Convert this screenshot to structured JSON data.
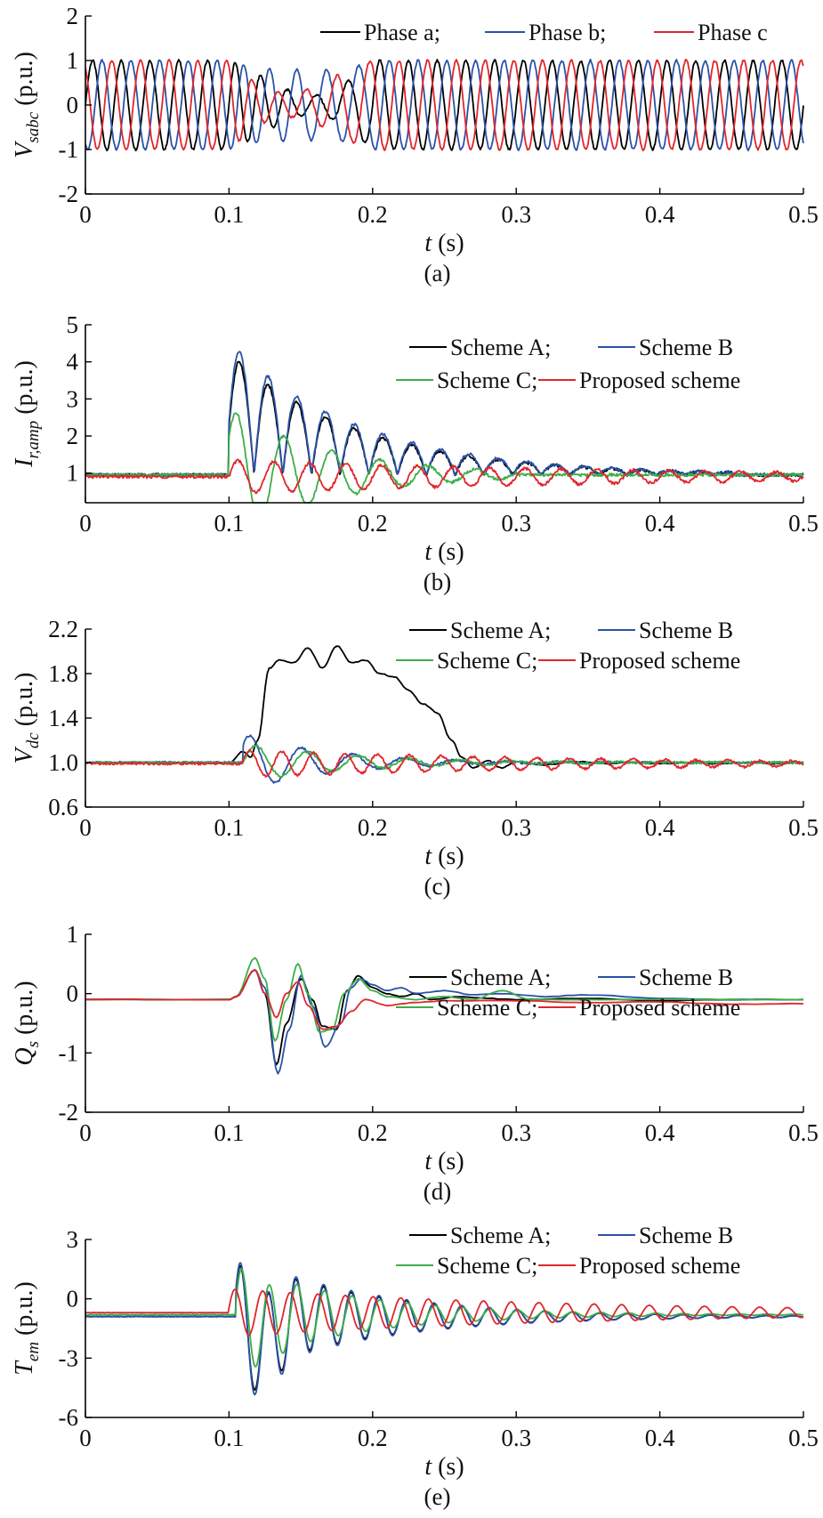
{
  "colors": {
    "black": "#000000",
    "blue": "#2a52a8",
    "red": "#e0262c",
    "green": "#3cae48"
  },
  "chart_data": [
    {
      "id": "a",
      "type": "line",
      "caption": "(a)",
      "xlabel": {
        "main": "t",
        "unit": " (s)"
      },
      "ylabel": {
        "main": "V",
        "sub": "sabc",
        "unit": " (p.u.)"
      },
      "xlim": [
        0,
        0.5
      ],
      "ylim": [
        -2,
        2
      ],
      "xticks": [
        0,
        0.1,
        0.2,
        0.3,
        0.4,
        0.5
      ],
      "xticklabels": [
        "0",
        "0.1",
        "0.2",
        "0.3",
        "0.4",
        "0.5"
      ],
      "yticks": [
        -2,
        -1,
        0,
        1,
        2
      ],
      "yticklabels": [
        "-2",
        "-1",
        "0",
        "1",
        "2"
      ],
      "legend_rows": [
        [
          {
            "label": "Phase a;",
            "color": "black"
          },
          {
            "label": "Phase b;",
            "color": "blue"
          },
          {
            "label": "Phase c",
            "color": "red"
          }
        ]
      ],
      "series": [
        {
          "name": "Phase a",
          "color": "black",
          "kind": "voltage",
          "phase": 0
        },
        {
          "name": "Phase b",
          "color": "blue",
          "kind": "voltage",
          "phase": -120
        },
        {
          "name": "Phase c",
          "color": "red",
          "kind": "voltage",
          "phase": 120
        }
      ]
    },
    {
      "id": "b",
      "type": "line",
      "caption": "(b)",
      "xlabel": {
        "main": "t",
        "unit": " (s)"
      },
      "ylabel": {
        "main": "I",
        "sub": "r,amp",
        "unit": " (p.u.)"
      },
      "xlim": [
        0,
        0.5
      ],
      "ylim": [
        0.2,
        5
      ],
      "xticks": [
        0,
        0.1,
        0.2,
        0.3,
        0.4,
        0.5
      ],
      "xticklabels": [
        "0",
        "0.1",
        "0.2",
        "0.3",
        "0.4",
        "0.5"
      ],
      "yticks": [
        1,
        2,
        3,
        4,
        5
      ],
      "yticklabels": [
        "1",
        "2",
        "3",
        "4",
        "5"
      ],
      "legend_rows": [
        [
          {
            "label": "Scheme A;",
            "color": "black"
          },
          {
            "label": "Scheme B",
            "color": "blue"
          }
        ],
        [
          {
            "label": "Scheme C;",
            "color": "green"
          },
          {
            "label": "Proposed scheme",
            "color": "red"
          }
        ]
      ],
      "series": [
        {
          "name": "Scheme A",
          "color": "black",
          "kind": "osc",
          "base": 0.95,
          "amp": 3.3,
          "freq": 25,
          "tau": 0.09,
          "t0": 0.1,
          "stop": 0.45,
          "offset": 0.4
        },
        {
          "name": "Scheme B",
          "color": "blue",
          "kind": "osc",
          "base": 0.95,
          "amp": 3.6,
          "freq": 25,
          "tau": 0.09,
          "t0": 0.1,
          "stop": 0.45,
          "offset": 0.4
        },
        {
          "name": "Scheme C",
          "color": "green",
          "kind": "osc",
          "base": 0.95,
          "amp": 1.8,
          "freq": 30,
          "tau": 0.07,
          "t0": 0.1,
          "stop": 0.3,
          "offset": 0.6
        },
        {
          "name": "Proposed scheme",
          "color": "red",
          "kind": "osc",
          "base": 0.9,
          "amp": 0.45,
          "freq": 40,
          "tau": 0.3,
          "t0": 0.1,
          "stop": 0.5,
          "offset": 0
        }
      ]
    },
    {
      "id": "c",
      "type": "line",
      "caption": "(c)",
      "xlabel": {
        "main": "t",
        "unit": " (s)"
      },
      "ylabel": {
        "main": "V",
        "sub": "dc",
        "unit": " (p.u.)"
      },
      "xlim": [
        0,
        0.5
      ],
      "ylim": [
        0.6,
        2.2
      ],
      "xticks": [
        0,
        0.1,
        0.2,
        0.3,
        0.4,
        0.5
      ],
      "xticklabels": [
        "0",
        "0.1",
        "0.2",
        "0.3",
        "0.4",
        "0.5"
      ],
      "yticks": [
        0.6,
        1.0,
        1.4,
        1.8,
        2.2
      ],
      "yticklabels": [
        "0.6",
        "1.0",
        "1.4",
        "1.8",
        "2.2"
      ],
      "legend_rows": [
        [
          {
            "label": "Scheme A;",
            "color": "black"
          },
          {
            "label": "Scheme B",
            "color": "blue"
          }
        ],
        [
          {
            "label": "Scheme C;",
            "color": "green"
          },
          {
            "label": "Proposed scheme",
            "color": "red"
          }
        ]
      ],
      "series": [
        {
          "name": "Scheme A",
          "color": "black",
          "kind": "points",
          "x": [
            0,
            0.1,
            0.11,
            0.115,
            0.12,
            0.128,
            0.135,
            0.145,
            0.155,
            0.165,
            0.175,
            0.185,
            0.195,
            0.205,
            0.215,
            0.225,
            0.235,
            0.245,
            0.255,
            0.262,
            0.27,
            0.28,
            0.29,
            0.3,
            0.32,
            0.34,
            0.36,
            0.38,
            0.4,
            0.42,
            0.44,
            0.46,
            0.48,
            0.5
          ],
          "y": [
            1.0,
            1.0,
            1.1,
            1.05,
            1.2,
            1.85,
            1.92,
            1.9,
            2.03,
            1.85,
            2.05,
            1.9,
            1.92,
            1.8,
            1.77,
            1.65,
            1.53,
            1.45,
            1.2,
            1.05,
            0.95,
            1.02,
            0.95,
            1.01,
            0.98,
            1.01,
            0.99,
            1.0,
            0.99,
            1.0,
            0.99,
            1.0,
            0.99,
            1.0
          ]
        },
        {
          "name": "Scheme B",
          "color": "blue",
          "kind": "osc",
          "base": 1.0,
          "amp": 0.26,
          "freq": 28,
          "tau": 0.06,
          "t0": 0.11,
          "stop": 0.5,
          "offset": 0.7
        },
        {
          "name": "Scheme C",
          "color": "green",
          "kind": "osc",
          "base": 1.0,
          "amp": 0.17,
          "freq": 28,
          "tau": 0.08,
          "t0": 0.11,
          "stop": 0.5,
          "offset": 0
        },
        {
          "name": "Proposed scheme",
          "color": "red",
          "kind": "osc",
          "base": 0.99,
          "amp": 0.12,
          "freq": 45,
          "tau": 0.25,
          "t0": 0.11,
          "stop": 0.5,
          "offset": 0.3
        }
      ]
    },
    {
      "id": "d",
      "type": "line",
      "caption": "(d)",
      "xlabel": {
        "main": "t",
        "unit": " (s)"
      },
      "ylabel": {
        "main": "Q",
        "sub": "s",
        "unit": " (p.u.)"
      },
      "xlim": [
        0,
        0.5
      ],
      "ylim": [
        -2,
        1
      ],
      "xticks": [
        0,
        0.1,
        0.2,
        0.3,
        0.4,
        0.5
      ],
      "xticklabels": [
        "0",
        "0.1",
        "0.2",
        "0.3",
        "0.4",
        "0.5"
      ],
      "yticks": [
        -2,
        -1,
        0,
        1
      ],
      "yticklabels": [
        "-2",
        "-1",
        "0",
        "1"
      ],
      "legend_rows": [
        [
          {
            "label": "Scheme A;",
            "color": "black"
          },
          {
            "label": "Scheme B",
            "color": "blue"
          }
        ],
        [
          {
            "label": "Scheme C;",
            "color": "green"
          },
          {
            "label": "Proposed scheme",
            "color": "red"
          }
        ]
      ],
      "series": [
        {
          "name": "Scheme A",
          "color": "black",
          "kind": "points",
          "x": [
            0,
            0.1,
            0.105,
            0.118,
            0.125,
            0.133,
            0.14,
            0.15,
            0.158,
            0.165,
            0.175,
            0.182,
            0.19,
            0.2,
            0.21,
            0.22,
            0.23,
            0.24,
            0.26,
            0.28,
            0.3,
            0.35,
            0.4,
            0.45,
            0.5
          ],
          "y": [
            -0.1,
            -0.1,
            -0.05,
            0.4,
            0.0,
            -1.2,
            -0.5,
            0.25,
            -0.1,
            -0.55,
            -0.6,
            0.05,
            0.3,
            0.1,
            0.0,
            -0.05,
            0.0,
            -0.1,
            -0.05,
            -0.08,
            -0.1,
            -0.08,
            -0.12,
            -0.1,
            -0.1
          ]
        },
        {
          "name": "Scheme B",
          "color": "blue",
          "kind": "points",
          "x": [
            0,
            0.1,
            0.105,
            0.118,
            0.125,
            0.134,
            0.142,
            0.15,
            0.158,
            0.167,
            0.178,
            0.185,
            0.192,
            0.2,
            0.21,
            0.22,
            0.23,
            0.25,
            0.27,
            0.29,
            0.32,
            0.35,
            0.4,
            0.45,
            0.5
          ],
          "y": [
            -0.1,
            -0.1,
            -0.05,
            0.4,
            0.1,
            -1.35,
            -0.6,
            0.3,
            -0.2,
            -0.9,
            -0.5,
            0.1,
            0.25,
            0.15,
            0.05,
            0.1,
            0.0,
            0.05,
            -0.02,
            0.0,
            -0.05,
            -0.02,
            -0.08,
            -0.1,
            -0.1
          ]
        },
        {
          "name": "Scheme C",
          "color": "green",
          "kind": "points",
          "x": [
            0,
            0.1,
            0.105,
            0.118,
            0.125,
            0.132,
            0.14,
            0.148,
            0.155,
            0.163,
            0.172,
            0.18,
            0.19,
            0.2,
            0.21,
            0.23,
            0.25,
            0.27,
            0.29,
            0.31,
            0.35,
            0.4,
            0.45,
            0.5
          ],
          "y": [
            -0.1,
            -0.1,
            -0.05,
            0.6,
            0.25,
            -0.8,
            -0.1,
            0.5,
            0.0,
            -0.65,
            -0.6,
            0.0,
            0.25,
            0.05,
            -0.05,
            -0.1,
            -0.05,
            -0.1,
            0.05,
            -0.1,
            -0.1,
            -0.1,
            -0.1,
            -0.1
          ]
        },
        {
          "name": "Proposed scheme",
          "color": "red",
          "kind": "points",
          "x": [
            0,
            0.1,
            0.105,
            0.118,
            0.125,
            0.133,
            0.14,
            0.148,
            0.155,
            0.165,
            0.175,
            0.185,
            0.195,
            0.21,
            0.23,
            0.25,
            0.3,
            0.35,
            0.4,
            0.45,
            0.5
          ],
          "y": [
            -0.1,
            -0.1,
            -0.05,
            0.4,
            0.0,
            -0.4,
            0.0,
            0.2,
            -0.2,
            -0.6,
            -0.55,
            -0.3,
            -0.1,
            -0.2,
            -0.15,
            -0.12,
            -0.12,
            -0.15,
            -0.14,
            -0.18,
            -0.17
          ]
        }
      ]
    },
    {
      "id": "e",
      "type": "line",
      "caption": "(e)",
      "xlabel": {
        "main": "t",
        "unit": " (s)"
      },
      "ylabel": {
        "main": "T",
        "sub": "em",
        "unit": " (p.u.)"
      },
      "xlim": [
        0,
        0.5
      ],
      "ylim": [
        -6,
        3
      ],
      "xticks": [
        0,
        0.1,
        0.2,
        0.3,
        0.4,
        0.5
      ],
      "xticklabels": [
        "0",
        "0.1",
        "0.2",
        "0.3",
        "0.4",
        "0.5"
      ],
      "yticks": [
        -6,
        -3,
        0,
        3
      ],
      "yticklabels": [
        "-6",
        "-3",
        "0",
        "3"
      ],
      "legend_rows": [
        [
          {
            "label": "Scheme A;",
            "color": "black"
          },
          {
            "label": "Scheme B",
            "color": "blue"
          }
        ],
        [
          {
            "label": "Scheme C;",
            "color": "green"
          },
          {
            "label": "Proposed scheme",
            "color": "red"
          }
        ]
      ],
      "series": [
        {
          "name": "Scheme A",
          "color": "black",
          "kind": "osc",
          "base": -0.9,
          "amp": 3.0,
          "freq": 52,
          "tau": 0.09,
          "t0": 0.105,
          "stop": 0.5,
          "offset": 0.5,
          "skew": -1.5
        },
        {
          "name": "Scheme B",
          "color": "blue",
          "kind": "osc",
          "base": -0.9,
          "amp": 3.2,
          "freq": 52,
          "tau": 0.09,
          "t0": 0.105,
          "stop": 0.5,
          "offset": 0.5,
          "skew": -1.6
        },
        {
          "name": "Scheme C",
          "color": "green",
          "kind": "osc",
          "base": -0.8,
          "amp": 2.6,
          "freq": 52,
          "tau": 0.08,
          "t0": 0.105,
          "stop": 0.5,
          "offset": 0.3,
          "skew": -0.6
        },
        {
          "name": "Proposed scheme",
          "color": "red",
          "kind": "osc",
          "base": -0.7,
          "amp": 1.2,
          "freq": 52,
          "tau": 0.25,
          "t0": 0.1,
          "stop": 0.5,
          "offset": 0.2,
          "skew": 0
        }
      ]
    }
  ]
}
